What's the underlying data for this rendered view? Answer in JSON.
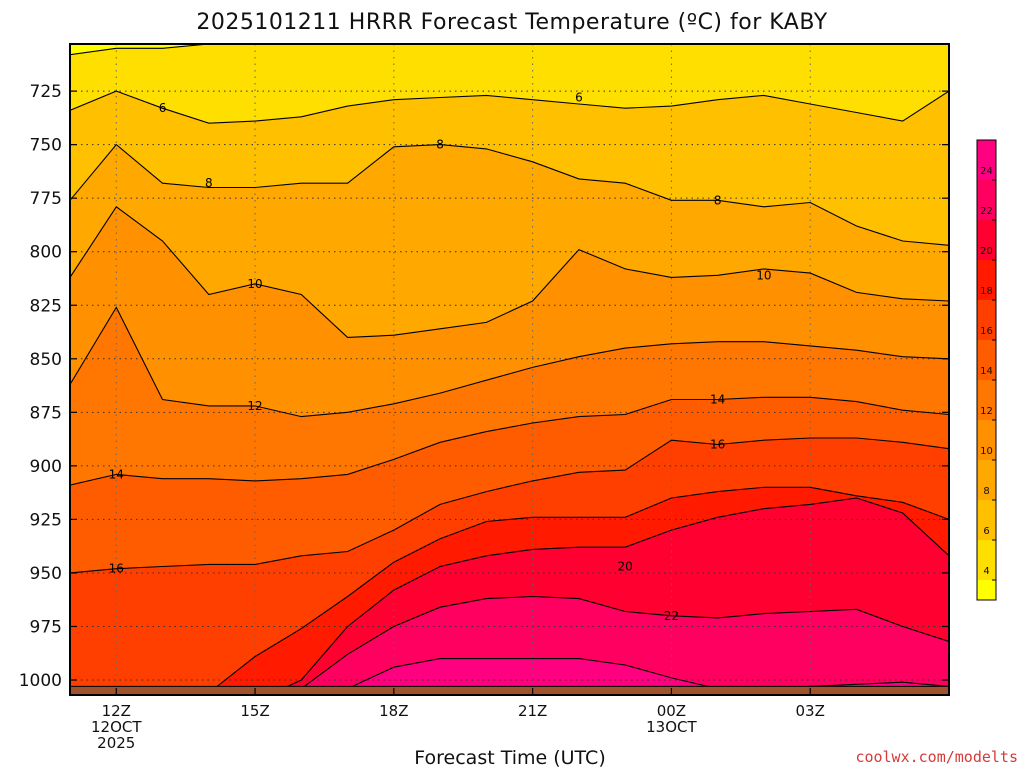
{
  "chart_data": {
    "type": "contour",
    "title": "2025101211 HRRR Forecast Temperature (ºC) for KABY",
    "xlabel": "Forecast Time (UTC)",
    "ylabel": "",
    "credit": "coolwx.com/modelts",
    "x_hours": [
      -1,
      0,
      1,
      2,
      3,
      4,
      5,
      6,
      7,
      8,
      9,
      10,
      11,
      12,
      13,
      14,
      15,
      16,
      17,
      18
    ],
    "x_ticks": [
      {
        "hour": 0,
        "lines": [
          "12Z",
          "12OCT",
          "2025"
        ]
      },
      {
        "hour": 3,
        "lines": [
          "15Z"
        ]
      },
      {
        "hour": 6,
        "lines": [
          "18Z"
        ]
      },
      {
        "hour": 9,
        "lines": [
          "21Z"
        ]
      },
      {
        "hour": 12,
        "lines": [
          "00Z",
          "13OCT"
        ]
      },
      {
        "hour": 15,
        "lines": [
          "03Z"
        ]
      }
    ],
    "y_ticks": [
      725,
      750,
      775,
      800,
      825,
      850,
      875,
      900,
      925,
      950,
      975,
      1000
    ],
    "y_range_hpa": [
      703,
      1007
    ],
    "surface_hpa": 1003,
    "contour_levels": [
      4,
      6,
      8,
      10,
      12,
      14,
      16,
      18,
      20,
      22,
      24
    ],
    "colorbar_ticks": [
      4,
      6,
      8,
      10,
      12,
      14,
      16,
      18,
      20,
      22,
      24
    ],
    "colorbar_range": [
      3,
      26
    ],
    "colors": {
      "ground": "#a0522d",
      "band_below_4": "#ffff00",
      "band_4_6": "#ffdf00",
      "band_6_8": "#ffc000",
      "band_8_10": "#ffa800",
      "band_10_12": "#ff9100",
      "band_12_14": "#ff7700",
      "band_14_16": "#ff5c00",
      "band_16_18": "#ff3f00",
      "band_18_20": "#ff1a00",
      "band_20_22": "#ff0030",
      "band_22_24": "#ff0060",
      "band_above_24": "#ff0080"
    },
    "contour_labels": [
      {
        "level": 6,
        "hour": 1,
        "hpa": 733
      },
      {
        "level": 6,
        "hour": 10,
        "hpa": 728
      },
      {
        "level": 8,
        "hour": 2,
        "hpa": 768
      },
      {
        "level": 8,
        "hour": 7,
        "hpa": 750
      },
      {
        "level": 8,
        "hour": 13,
        "hpa": 776
      },
      {
        "level": 10,
        "hour": 3,
        "hpa": 815
      },
      {
        "level": 10,
        "hour": 14,
        "hpa": 811
      },
      {
        "level": 12,
        "hour": 3,
        "hpa": 872
      },
      {
        "level": 14,
        "hour": 0,
        "hpa": 904
      },
      {
        "level": 14,
        "hour": 13,
        "hpa": 869
      },
      {
        "level": 16,
        "hour": 0,
        "hpa": 948
      },
      {
        "level": 16,
        "hour": 13,
        "hpa": 890
      },
      {
        "level": 20,
        "hour": 11,
        "hpa": 947
      },
      {
        "level": 22,
        "hour": 12,
        "hpa": 970
      }
    ]
  }
}
